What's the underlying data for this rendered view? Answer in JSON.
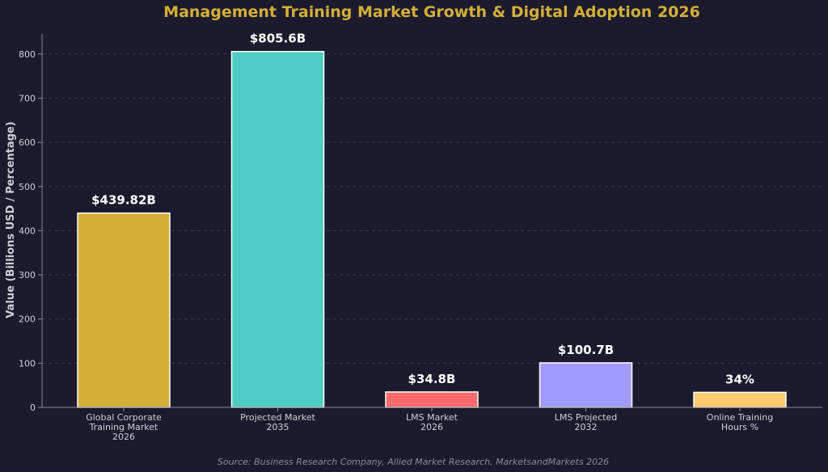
{
  "chart_data": {
    "type": "bar",
    "title": "Management Training Market Growth & Digital Adoption 2026",
    "xlabel": "",
    "ylabel": "Value (Billions USD / Percentage)",
    "ylim": [
      0,
      845
    ],
    "yticks": [
      "0",
      "100",
      "200",
      "300",
      "400",
      "500",
      "600",
      "700",
      "800"
    ],
    "grid": true,
    "categories": [
      [
        "Global Corporate",
        "Training Market",
        "2026"
      ],
      [
        "Projected Market",
        "2035"
      ],
      [
        "LMS Market",
        "2026"
      ],
      [
        "LMS Projected",
        "2032"
      ],
      [
        "Online Training",
        "Hours %"
      ]
    ],
    "values": [
      439.82,
      805.6,
      34.8,
      100.7,
      34
    ],
    "data_labels": [
      "$439.82B",
      "$805.6B",
      "$34.8B",
      "$100.7B",
      "34%"
    ],
    "colors": [
      "#d4af37",
      "#4ecdc4",
      "#ff6b6b",
      "#a29bfe",
      "#fdcb6e"
    ],
    "title_color": "#d4af37",
    "source": "Source: Business Research Company, Allied Market Research, MarketsandMarkets 2026"
  }
}
